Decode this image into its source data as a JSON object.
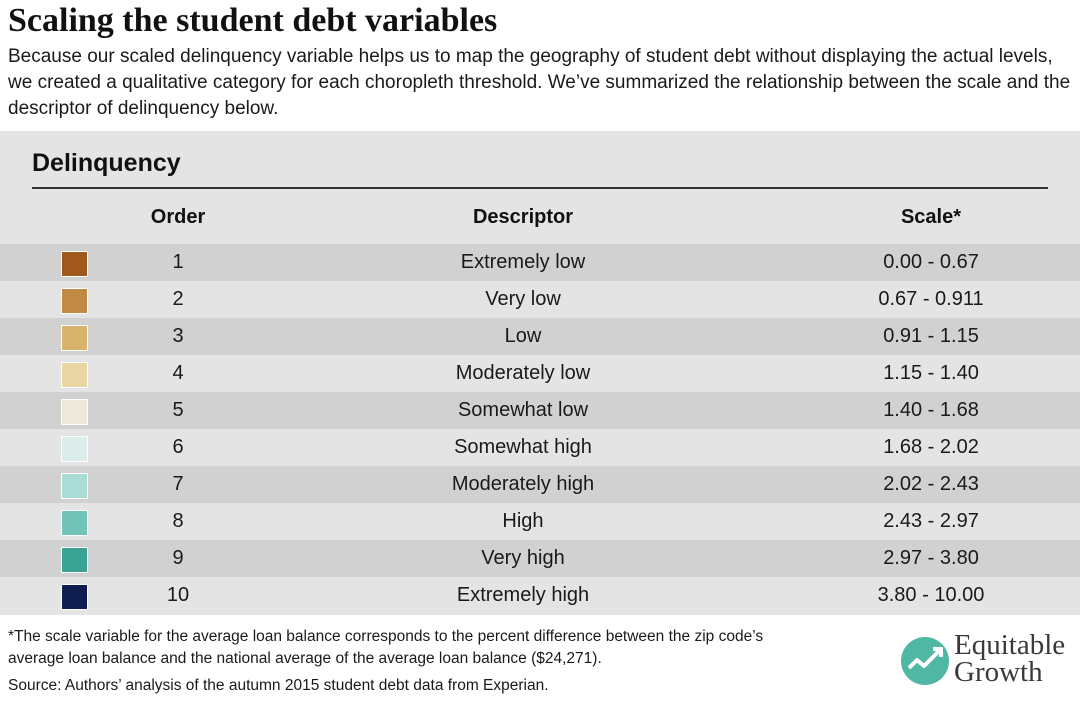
{
  "title": "Scaling the student debt variables",
  "subtitle": "Because our scaled delinquency variable helps us to map the geography of student debt without displaying the actual levels, we created a qualitative category for each choropleth threshold. We’ve summarized the relationship between the scale and the descriptor of delinquency below.",
  "section_title": "Delinquency",
  "columns": {
    "order": "Order",
    "descriptor": "Descriptor",
    "scale": "Scale*"
  },
  "footnote": "*The scale variable for the average loan balance corresponds to the percent difference between the zip code’s average loan balance and the national average of the average loan balance ($24,271).",
  "source": "Source: Authors’ analysis of the autumn 2015 student debt data from Experian.",
  "logo": {
    "line1": "Equitable",
    "line2": "Growth",
    "icon": "growth-chart-icon"
  },
  "chart_data": {
    "type": "table",
    "title": "Delinquency",
    "columns": [
      "Order",
      "Descriptor",
      "Scale*"
    ],
    "rows": [
      {
        "color": "#a0581c",
        "order": "1",
        "descriptor": "Extremely low",
        "scale": "0.00 - 0.67"
      },
      {
        "color": "#c08a44",
        "order": "2",
        "descriptor": "Very low",
        "scale": "0.67 - 0.911"
      },
      {
        "color": "#d8b36c",
        "order": "3",
        "descriptor": "Low",
        "scale": "0.91 - 1.15"
      },
      {
        "color": "#e9d6a4",
        "order": "4",
        "descriptor": "Moderately low",
        "scale": "1.15 - 1.40"
      },
      {
        "color": "#efe9dc",
        "order": "5",
        "descriptor": "Somewhat low",
        "scale": "1.40 - 1.68"
      },
      {
        "color": "#dcecea",
        "order": "6",
        "descriptor": "Somewhat high",
        "scale": "1.68 - 2.02"
      },
      {
        "color": "#a9dcd5",
        "order": "7",
        "descriptor": "Moderately high",
        "scale": "2.02 - 2.43"
      },
      {
        "color": "#72c3b8",
        "order": "8",
        "descriptor": "High",
        "scale": "2.43 - 2.97"
      },
      {
        "color": "#3aa393",
        "order": "9",
        "descriptor": "Very high",
        "scale": "2.97 - 3.80"
      },
      {
        "color": "#0f1d4f",
        "order": "10",
        "descriptor": "Extremely high",
        "scale": "3.80 - 10.00"
      }
    ]
  }
}
